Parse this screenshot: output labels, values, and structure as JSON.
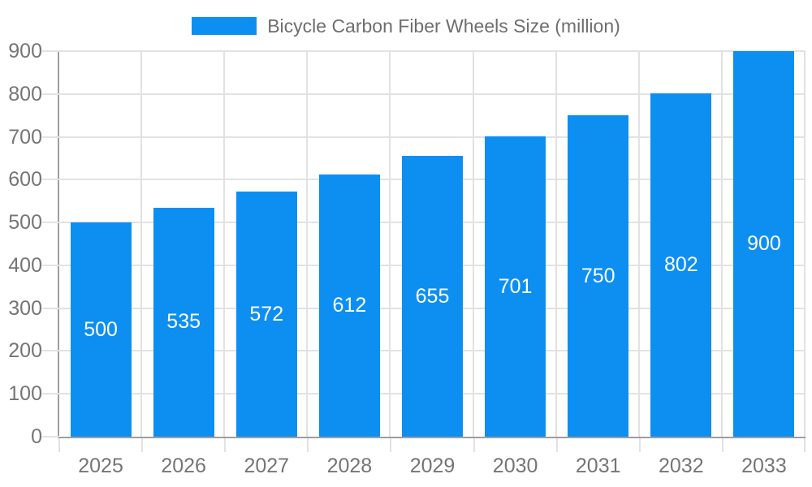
{
  "legend": {
    "position": "top-center",
    "items": [
      {
        "label": "Bicycle Carbon Fiber Wheels Size (million)",
        "color": "#0d8ff2"
      }
    ]
  },
  "chart_data": {
    "type": "bar",
    "title": "Bicycle Carbon Fiber Wheels Size (million)",
    "xlabel": "",
    "ylabel": "",
    "categories": [
      "2025",
      "2026",
      "2027",
      "2028",
      "2029",
      "2030",
      "2031",
      "2032",
      "2033"
    ],
    "series": [
      {
        "name": "Bicycle Carbon Fiber Wheels Size (million)",
        "color": "#0d8ff2",
        "values": [
          500,
          535,
          572,
          612,
          655,
          701,
          750,
          802,
          900
        ]
      }
    ],
    "bar_value_labels_visible": true,
    "ylim": [
      0,
      900
    ],
    "yticks": [
      0,
      100,
      200,
      300,
      400,
      500,
      600,
      700,
      800,
      900
    ],
    "grid": true,
    "legend_position": "top"
  },
  "colors": {
    "bar": "#0d8ff2",
    "grid_line": "#e2e2e2",
    "axis_line": "#9e9e9e",
    "tick_label_text": "#757575",
    "legend_text": "#6e6e6e",
    "bar_value_label_text": "#ffffff",
    "background": "#ffffff"
  }
}
